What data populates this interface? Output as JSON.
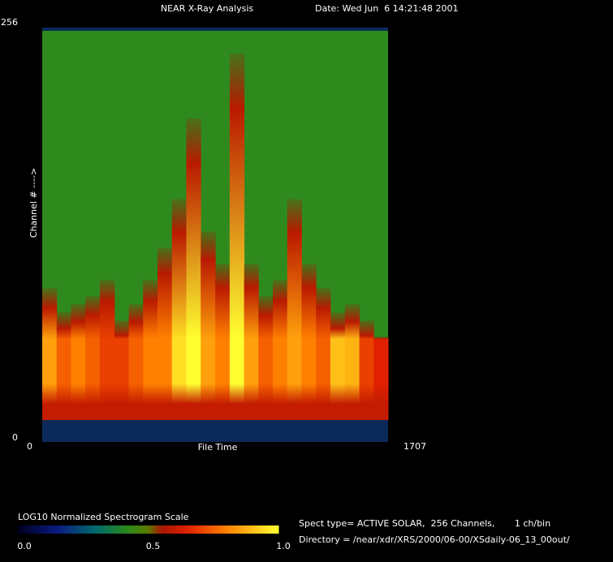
{
  "chart_data": {
    "type": "spectrogram",
    "title": "NEAR X-Ray Analysis",
    "date": "Date: Wed Jun  6 14:21:48 2001",
    "x_label": "File Time",
    "y_label": "Channel # ---->",
    "xlim": [
      0,
      1707
    ],
    "xticks": [
      0,
      1707
    ],
    "ylim": [
      0,
      256
    ],
    "yticks": [
      0,
      256
    ],
    "bins": [
      0,
      71,
      142,
      213,
      284,
      356,
      427,
      498,
      569,
      640,
      711,
      782,
      854,
      925,
      996,
      1067,
      1138,
      1209,
      1280,
      1351,
      1422,
      1494,
      1565,
      1636,
      1707
    ],
    "peak_level": [
      0.85,
      0.75,
      0.8,
      0.75,
      0.7,
      0.7,
      0.75,
      0.8,
      0.8,
      0.95,
      1.0,
      0.85,
      0.8,
      1.0,
      0.85,
      0.75,
      0.8,
      0.85,
      0.8,
      0.75,
      0.9,
      0.88,
      0.7,
      0.65
    ],
    "flare_top_channel": [
      95,
      80,
      85,
      90,
      100,
      75,
      85,
      100,
      120,
      150,
      200,
      130,
      110,
      240,
      110,
      90,
      100,
      150,
      110,
      95,
      80,
      85,
      75,
      65
    ],
    "background_color": "#2f8a1e",
    "strip_color": "#0b2a5a",
    "colorscale": [
      [
        0,
        "#000020"
      ],
      [
        0.15,
        "#0a1a80"
      ],
      [
        0.3,
        "#006a6a"
      ],
      [
        0.42,
        "#2a8a1a"
      ],
      [
        0.5,
        "#5a7a00"
      ],
      [
        0.55,
        "#a81800"
      ],
      [
        0.65,
        "#e02000"
      ],
      [
        0.8,
        "#ff8000"
      ],
      [
        1,
        "#ffff30"
      ]
    ],
    "colorbar": {
      "title": "LOG10 Normalized Spectrogram Scale",
      "lim": [
        0,
        1
      ],
      "ticks": [
        {
          "value": 0,
          "label": "0.0"
        },
        {
          "value": 0.5,
          "label": "0.5"
        },
        {
          "value": 1,
          "label": "1.0"
        }
      ]
    },
    "info": [
      "Spect type= ACTIVE SOLAR,  256 Channels,       1 ch/bin",
      "Directory = /near/xdr/XRS/2000/06-00/XSdaily-06_13_00out/"
    ]
  }
}
